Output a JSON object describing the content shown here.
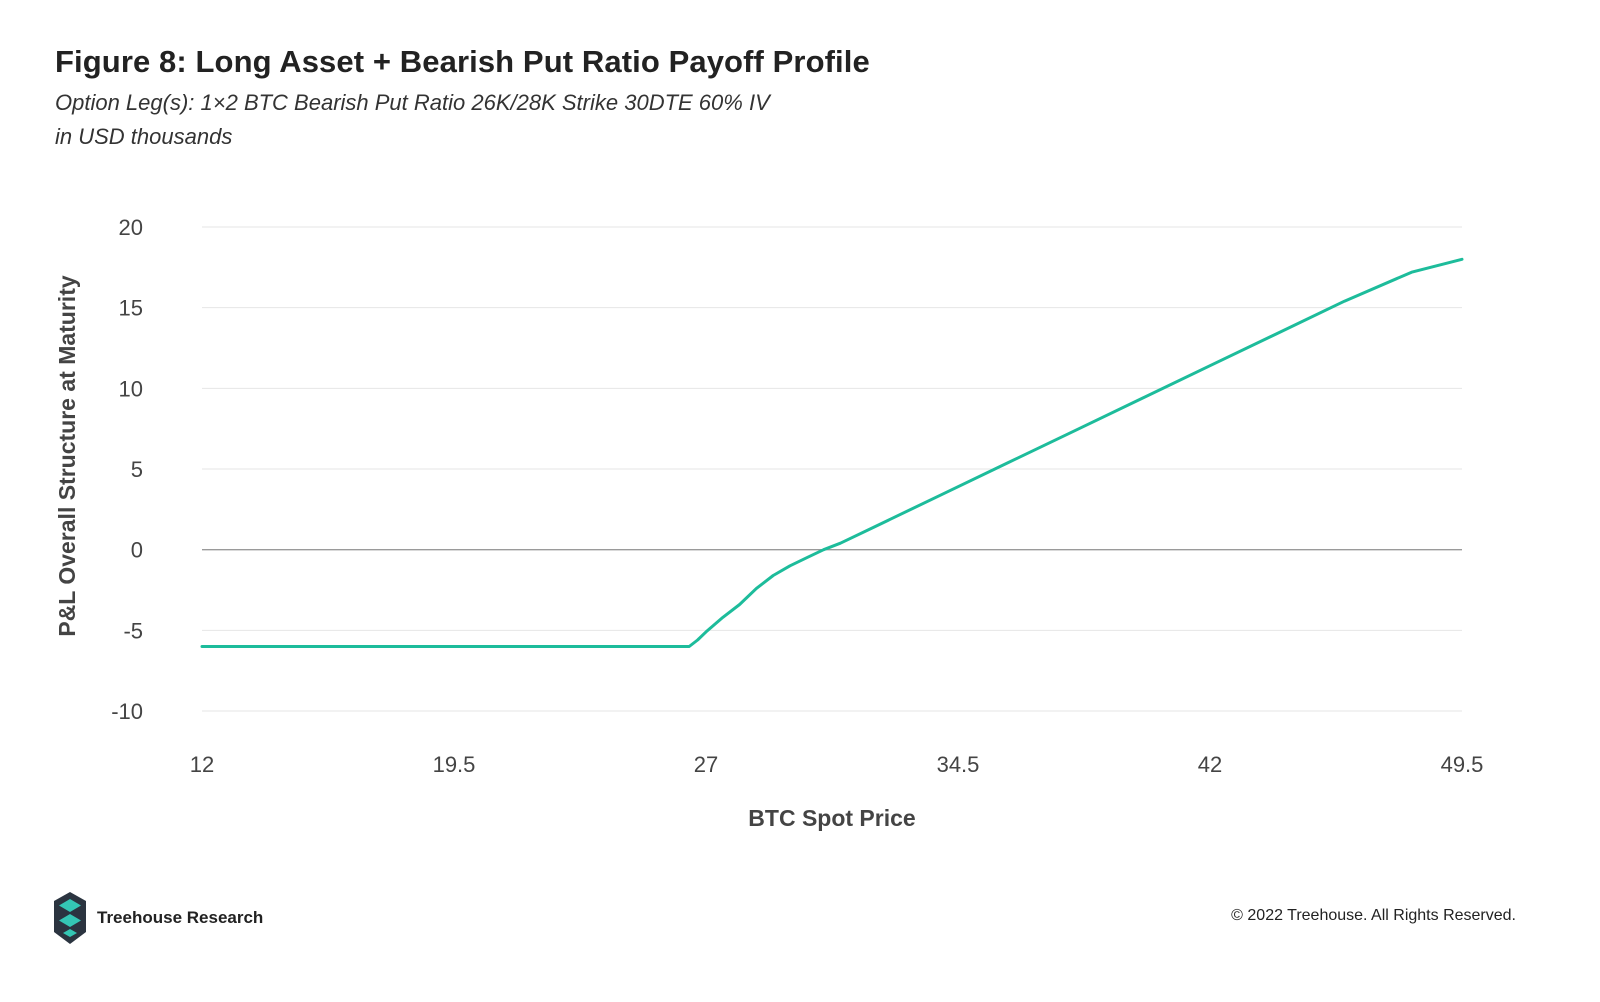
{
  "header": {
    "title": "Figure 8: Long Asset + Bearish Put Ratio Payoff Profile",
    "subtitle_line1": "Option Leg(s): 1×2 BTC Bearish Put Ratio 26K/28K Strike 30DTE 60% IV",
    "subtitle_line2": "in USD thousands"
  },
  "footer": {
    "brand": "Treehouse Research",
    "copyright": "© 2022 Treehouse. All Rights Reserved."
  },
  "colors": {
    "series": "#1dbc9b",
    "gridline": "#e6e6e6",
    "zero_line": "#9a9a9a",
    "text": "#444444",
    "logo_dark": "#2b3440",
    "logo_teal": "#34c6b4"
  },
  "chart_data": {
    "type": "line",
    "xlabel": "BTC Spot Price",
    "ylabel": "P&L Overall Structure at Maturity",
    "xlim": [
      12,
      49.5
    ],
    "ylim": [
      -10,
      20
    ],
    "x_ticks": [
      "12",
      "19.5",
      "27",
      "34.5",
      "42",
      "49.5"
    ],
    "y_ticks": [
      "20",
      "15",
      "10",
      "5",
      "0",
      "-5",
      "-10"
    ],
    "grid": true,
    "legend": "none",
    "series": [
      {
        "x": [
          12,
          26.5,
          26.75,
          27,
          27.5,
          28,
          28.5,
          29,
          29.5,
          30,
          30.5,
          31,
          32,
          34,
          36,
          38,
          40,
          42,
          44,
          46,
          48,
          49.5
        ],
        "values": [
          -6,
          -6,
          -5.6,
          -5.1,
          -4.2,
          -3.4,
          -2.4,
          -1.6,
          -1.0,
          -0.5,
          0,
          0.4,
          1.4,
          3.4,
          5.4,
          7.4,
          9.4,
          11.4,
          13.4,
          15.4,
          17.2,
          18.0
        ]
      }
    ]
  }
}
